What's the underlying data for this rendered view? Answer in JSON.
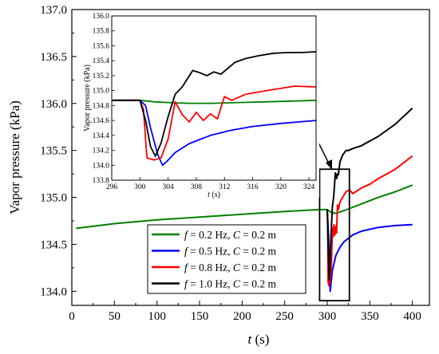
{
  "chart_data": [
    {
      "type": "line",
      "xlabel_prefix": "t",
      "xlabel_suffix": " (s)",
      "ylabel": "Vapor pressure (kPa)",
      "xlim": [
        0,
        420
      ],
      "ylim": [
        133.85,
        137.0
      ],
      "x_ticks": [
        "0",
        "50",
        "100",
        "150",
        "200",
        "250",
        "300",
        "350",
        "400"
      ],
      "y_ticks": [
        "134.0",
        "134.5",
        "135.0",
        "135.5",
        "136.0",
        "136.5",
        "137.0"
      ],
      "legend_position": "bottom-left-center",
      "series": [
        {
          "name": "f = 0.2 Hz, C = 0.2 m",
          "legend_f": "f",
          "legend_mid": " = 0.2 Hz, ",
          "legend_c": "C",
          "legend_end": " = 0.2 m",
          "color": "#008000",
          "x": [
            5,
            50,
            100,
            150,
            200,
            250,
            290,
            300,
            305,
            310,
            320,
            340,
            360,
            380,
            400
          ],
          "y": [
            134.67,
            134.72,
            134.76,
            134.79,
            134.82,
            134.85,
            134.87,
            134.87,
            134.84,
            134.83,
            134.86,
            134.93,
            135.0,
            135.06,
            135.13
          ]
        },
        {
          "name": "f = 0.5 Hz, C = 0.2 m",
          "legend_f": "f",
          "legend_mid": " = 0.5 Hz, ",
          "legend_c": "C",
          "legend_end": " = 0.2 m",
          "color": "#0000ff",
          "x": [
            300,
            301.5,
            302.5,
            303.5,
            304,
            306,
            310,
            315,
            320,
            330,
            340,
            360,
            380,
            400
          ],
          "y": [
            134.87,
            134.6,
            134.2,
            134.0,
            134.05,
            134.22,
            134.38,
            134.47,
            134.53,
            134.6,
            134.64,
            134.68,
            134.7,
            134.71
          ]
        },
        {
          "name": "f = 0.8 Hz, C = 0.2 m",
          "legend_f": "f",
          "legend_mid": " = 0.8 Hz, ",
          "legend_c": "C",
          "legend_end": " = 0.2 m",
          "color": "#ff0000",
          "x": [
            300,
            300.5,
            301,
            302,
            302.5,
            303.5,
            305,
            306,
            307,
            308,
            309,
            310,
            311,
            312,
            313,
            315,
            318,
            322,
            326,
            330,
            340,
            350,
            360,
            380,
            400
          ],
          "y": [
            134.87,
            134.8,
            134.1,
            134.06,
            134.1,
            134.1,
            134.3,
            134.68,
            134.58,
            134.71,
            134.6,
            134.69,
            134.62,
            134.92,
            134.87,
            134.95,
            135.0,
            135.06,
            135.08,
            135.04,
            135.1,
            135.14,
            135.2,
            135.3,
            135.44
          ]
        },
        {
          "name": "f = 1.0 Hz, C = 0.2 m",
          "legend_f": "f",
          "legend_mid": " = 1.0 Hz, ",
          "legend_c": "C",
          "legend_end": " = 0.2 m",
          "color": "#000000",
          "x": [
            300,
            301,
            302,
            302.5,
            304,
            306,
            307.5,
            309.5,
            311,
            312,
            313,
            315,
            318,
            322,
            325,
            330,
            340,
            360,
            380,
            400
          ],
          "y": [
            134.87,
            134.5,
            134.2,
            134.12,
            134.5,
            134.9,
            135.0,
            135.26,
            135.2,
            135.25,
            135.24,
            135.38,
            135.45,
            135.5,
            135.5,
            135.52,
            135.55,
            135.65,
            135.78,
            135.95
          ]
        }
      ]
    },
    {
      "type": "line",
      "role": "inset",
      "xlabel_prefix": "t",
      "xlabel_suffix": " (s)",
      "ylabel": "Vapor pressure (kPa)",
      "xlim": [
        296,
        325
      ],
      "ylim": [
        133.8,
        136.0
      ],
      "x_ticks": [
        "296",
        "300",
        "304",
        "308",
        "312",
        "316",
        "320",
        "324"
      ],
      "y_ticks": [
        "133.8",
        "134.0",
        "134.2",
        "134.4",
        "134.6",
        "134.8",
        "135.0",
        "135.2",
        "135.4",
        "135.6",
        "135.8",
        "136.0"
      ],
      "series": [
        {
          "color": "#008000",
          "x": [
            296,
            300,
            302,
            304,
            307,
            310,
            314,
            318,
            322,
            325
          ],
          "y": [
            134.87,
            134.87,
            134.85,
            134.84,
            134.83,
            134.83,
            134.84,
            134.85,
            134.86,
            134.87
          ]
        },
        {
          "color": "#0000ff",
          "x": [
            296,
            300,
            300.8,
            301.5,
            302.5,
            303.2,
            303.8,
            305,
            307,
            310,
            313,
            316,
            320,
            325
          ],
          "y": [
            134.87,
            134.87,
            134.8,
            134.5,
            134.15,
            134.0,
            134.05,
            134.17,
            134.29,
            134.4,
            134.47,
            134.52,
            134.56,
            134.6
          ]
        },
        {
          "color": "#ff0000",
          "x": [
            296,
            300,
            300.5,
            301,
            302,
            303,
            304,
            305,
            306,
            307,
            308,
            309,
            310,
            311,
            312,
            313,
            315,
            318,
            322,
            325
          ],
          "y": [
            134.87,
            134.87,
            134.75,
            134.1,
            134.07,
            134.1,
            134.35,
            134.85,
            134.68,
            134.58,
            134.71,
            134.6,
            134.69,
            134.62,
            134.92,
            134.87,
            134.95,
            135.0,
            135.06,
            135.05
          ]
        },
        {
          "color": "#000000",
          "x": [
            296,
            300,
            300.8,
            301.5,
            302.2,
            303,
            304,
            305,
            306,
            307.5,
            308.5,
            309.5,
            310.5,
            311.5,
            312.5,
            313.5,
            315,
            317,
            319,
            321,
            323,
            325
          ],
          "y": [
            134.87,
            134.87,
            134.6,
            134.25,
            134.12,
            134.3,
            134.65,
            134.95,
            135.05,
            135.27,
            135.24,
            135.2,
            135.25,
            135.22,
            135.3,
            135.38,
            135.43,
            135.47,
            135.5,
            135.51,
            135.51,
            135.52
          ]
        }
      ]
    }
  ]
}
